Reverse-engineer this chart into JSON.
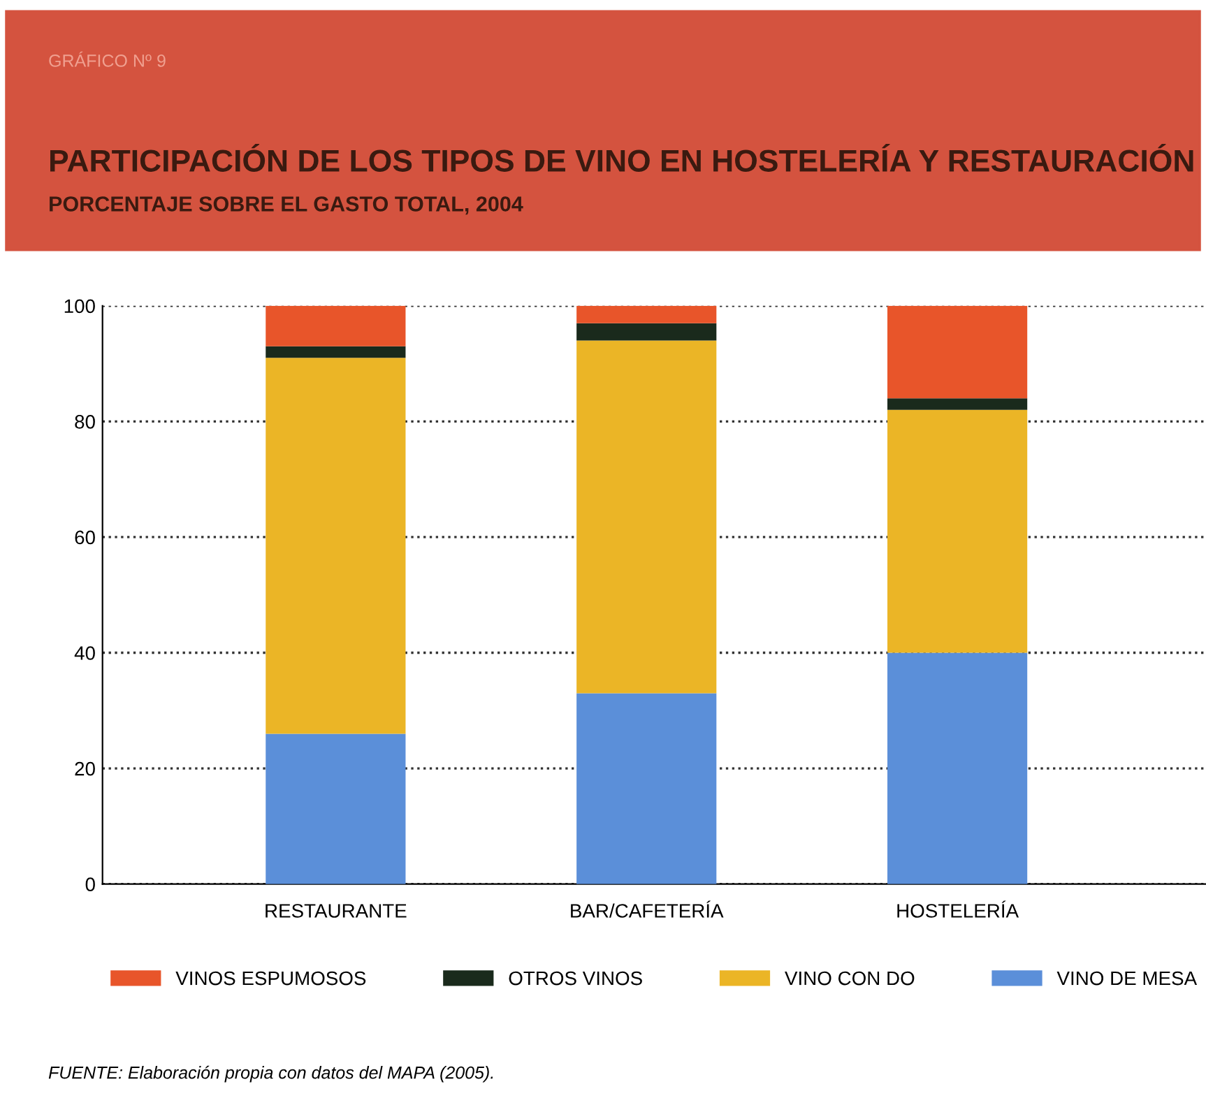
{
  "chart_data": {
    "type": "bar",
    "title": "PARTICIPACIÓN DE LOS TIPOS DE VINO EN HOSTELERÍA Y RESTAURACIÓN",
    "subtitle": "PORCENTAJE SOBRE EL GASTO TOTAL, 2004",
    "annotations": [
      "GRÁFICO Nº 9",
      "FUENTE: Elaboración propia con datos del MAPA (2005)."
    ],
    "categories": [
      "RESTAURANTE",
      "BAR/CAFETERÍA",
      "HOSTELERÍA"
    ],
    "stacked": true,
    "series": [
      {
        "name": "VINO DE MESA",
        "color": "#5b8fd9",
        "values": [
          26,
          33,
          40
        ]
      },
      {
        "name": "VINO CON DO",
        "color": "#ebb526",
        "values": [
          65,
          61,
          42
        ]
      },
      {
        "name": "OTROS VINOS",
        "color": "#1a2a1c",
        "values": [
          2,
          3,
          2
        ]
      },
      {
        "name": "VINOS ESPUMOSOS",
        "color": "#e8552a",
        "values": [
          7,
          3,
          16
        ]
      }
    ],
    "ylim": [
      0,
      100
    ],
    "yticks": [
      0,
      20,
      40,
      60,
      80,
      100
    ],
    "grid": "y",
    "legend": "bottom"
  }
}
